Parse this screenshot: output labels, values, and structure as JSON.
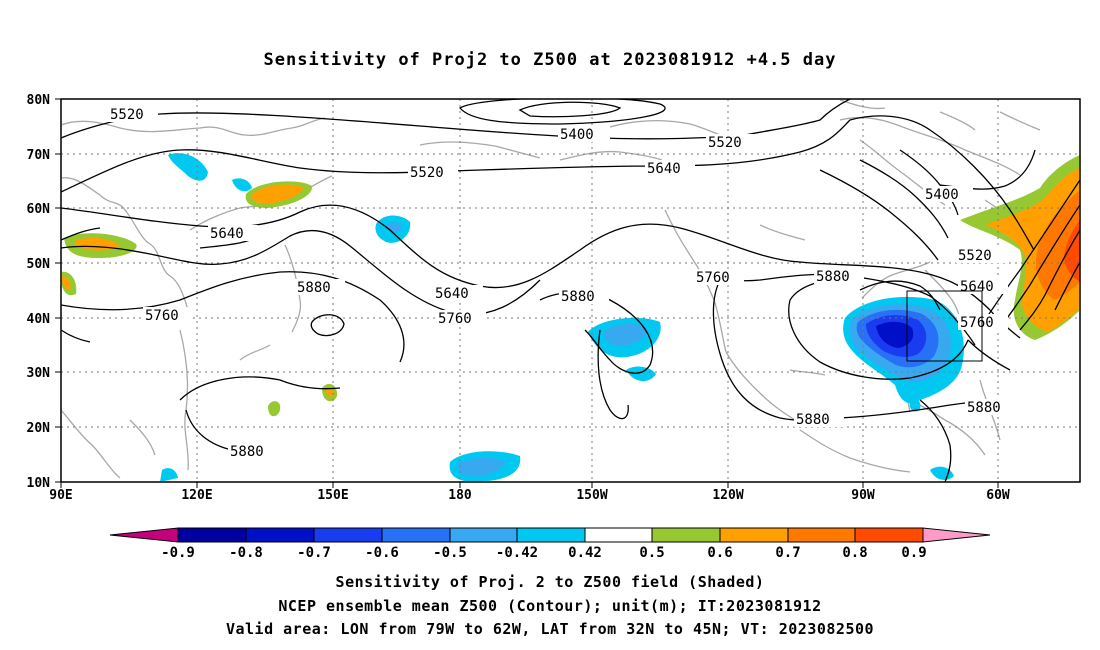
{
  "title": "Sensitivity of Proj2 to Z500 at 2023081912 +4.5 day",
  "map": {
    "lat_labels": [
      "80N",
      "70N",
      "60N",
      "50N",
      "40N",
      "30N",
      "20N",
      "10N"
    ],
    "lon_labels": [
      "90E",
      "120E",
      "150E",
      "180",
      "150W",
      "120W",
      "90W",
      "60W"
    ],
    "contour_labels": [
      "5520",
      "5400",
      "5520",
      "5520",
      "5640",
      "5400",
      "5640",
      "5520",
      "5760",
      "5640",
      "5640",
      "5880",
      "5760",
      "5880",
      "5880",
      "5760",
      "5760",
      "5880",
      "5880",
      "5880"
    ]
  },
  "colorbar": {
    "ticks": [
      "-0.9",
      "-0.8",
      "-0.7",
      "-0.6",
      "-0.5",
      "-0.42",
      "0.42",
      "0.5",
      "0.6",
      "0.7",
      "0.8",
      "0.9"
    ],
    "colors": [
      "#c4007d",
      "#0000a0",
      "#0010c8",
      "#1a3cf0",
      "#2870f5",
      "#38a8f0",
      "#00c8f0",
      "#ffffff",
      "#96c832",
      "#ffa000",
      "#ff7800",
      "#ff4b00",
      "#ff0000",
      "#ff9bc8"
    ]
  },
  "captions": {
    "line1": "Sensitivity of Proj. 2 to Z500 field (Shaded)",
    "line2": "NCEP ensemble mean Z500 (Contour); unit(m); IT:2023081912",
    "line3": "Valid area: LON from 79W to 62W, LAT from 32N to 45N; VT: 2023082500"
  }
}
